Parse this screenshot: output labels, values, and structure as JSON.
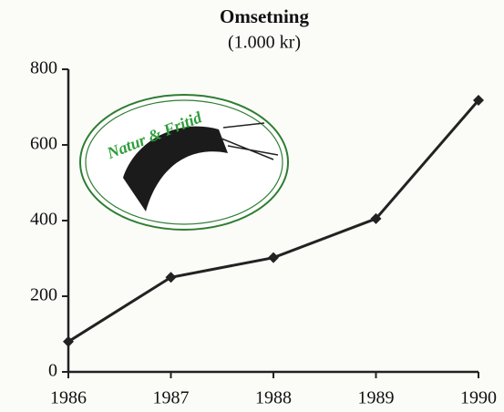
{
  "chart_data": {
    "type": "line",
    "title": "Omsetning",
    "subtitle": "(1.000 kr)",
    "annotation": "Natur & Fritid",
    "x": [
      1986,
      1987,
      1988,
      1989,
      1990
    ],
    "values": [
      80,
      250,
      302,
      405,
      718
    ],
    "color": "#222222",
    "xlim": [
      1986,
      1990
    ],
    "xticks": [
      1986,
      1987,
      1988,
      1989,
      1990
    ],
    "ylim": [
      0,
      800
    ],
    "yticks": [
      0,
      200,
      400,
      600,
      800
    ],
    "grid": false
  }
}
